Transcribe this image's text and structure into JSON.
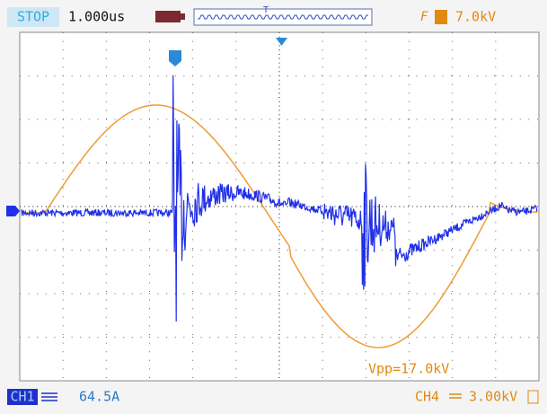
{
  "status": {
    "run_state": "STOP",
    "timebase": "1.000us",
    "trigger_level": "7.0kV"
  },
  "measurement": "Vpp=17.0kV",
  "channels": [
    {
      "label": "CH1",
      "scale": "64.5A"
    },
    {
      "label": "CH4",
      "scale": "3.00kV"
    }
  ]
}
